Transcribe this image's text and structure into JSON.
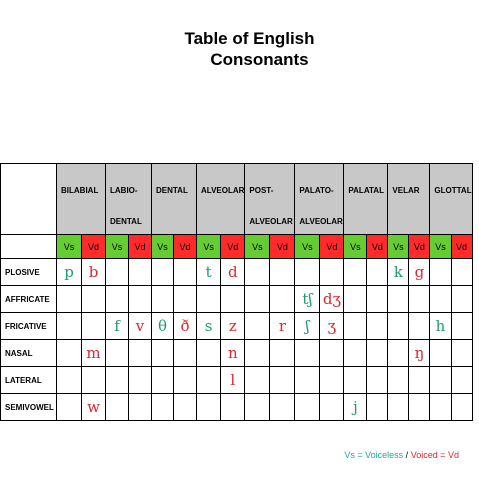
{
  "title": {
    "line1": "Table of English",
    "line2": "Consonants"
  },
  "places": [
    {
      "line1": "BILABIAL",
      "line2": ""
    },
    {
      "line1": "LABIO-",
      "line2": "DENTAL"
    },
    {
      "line1": "DENTAL",
      "line2": ""
    },
    {
      "line1": "ALVEOLAR",
      "line2": ""
    },
    {
      "line1": "POST-",
      "line2": "ALVEOLAR"
    },
    {
      "line1": "PALATO-",
      "line2": "ALVEOLAR"
    },
    {
      "line1": "PALATAL",
      "line2": ""
    },
    {
      "line1": "VELAR",
      "line2": ""
    },
    {
      "line1": "GLOTTAL",
      "line2": ""
    }
  ],
  "voicing": {
    "voiceless": "Vs",
    "voiced": "Vd"
  },
  "rows": [
    {
      "label": "PLOSIVE",
      "cells": [
        "p",
        "b",
        "",
        "",
        "",
        "",
        "t",
        "d",
        "",
        "",
        "",
        "",
        "",
        "",
        "k",
        "g",
        "",
        ""
      ]
    },
    {
      "label": "AFFRICATE",
      "cells": [
        "",
        "",
        "",
        "",
        "",
        "",
        "",
        "",
        "",
        "",
        "tʃ",
        "dʒ",
        "",
        "",
        "",
        "",
        "",
        ""
      ]
    },
    {
      "label": "FRICATIVE",
      "cells": [
        "",
        "",
        "f",
        "v",
        "θ",
        "ð",
        "s",
        "z",
        "",
        "r",
        "ʃ",
        "ʒ",
        "",
        "",
        "",
        "",
        "h",
        ""
      ]
    },
    {
      "label": "NASAL",
      "cells": [
        "",
        "m",
        "",
        "",
        "",
        "",
        "",
        "n",
        "",
        "",
        "",
        "",
        "",
        "",
        "",
        "ŋ",
        "",
        ""
      ]
    },
    {
      "label": "LATERAL",
      "cells": [
        "",
        "",
        "",
        "",
        "",
        "",
        "",
        "l",
        "",
        "",
        "",
        "",
        "",
        "",
        "",
        "",
        "",
        ""
      ]
    },
    {
      "label": "SEMIVOWEL",
      "cells": [
        "",
        "w",
        "",
        "",
        "",
        "",
        "",
        "",
        "",
        "",
        "",
        "",
        "j",
        "",
        "",
        "",
        "",
        ""
      ]
    }
  ],
  "legend": {
    "voiceless": "Vs = Voiceless",
    "separator": "/",
    "voiced": "Voiced = Vd"
  },
  "colors": {
    "voiceless_symbol": "#1f9a73",
    "voiced_symbol": "#e2262d",
    "vs_cell": "#66cc33",
    "vd_cell": "#ff2a2a",
    "header": "#c8c8c8"
  }
}
